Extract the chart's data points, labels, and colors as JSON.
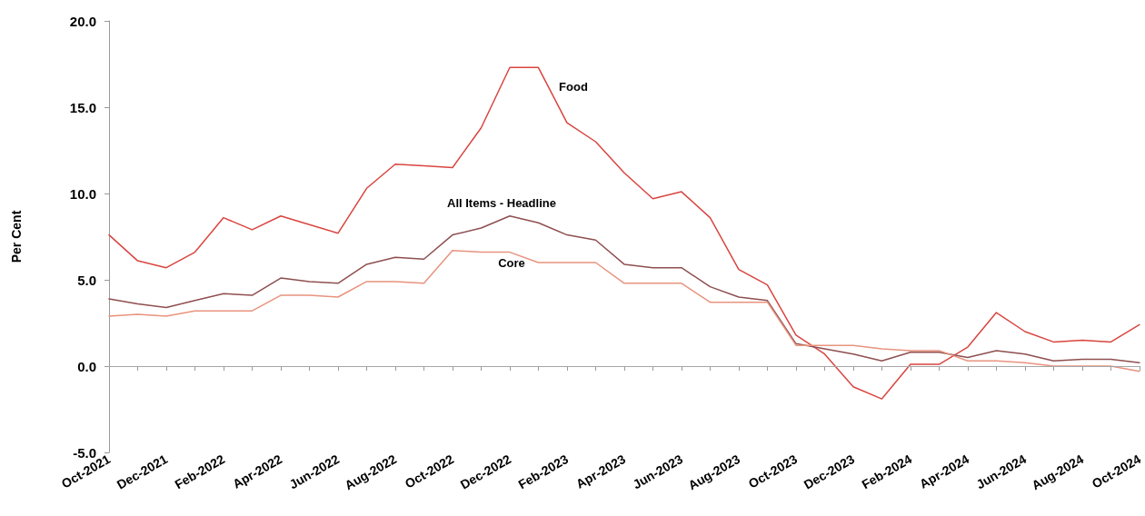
{
  "chart_data": {
    "type": "line",
    "ylabel": "Per Cent",
    "categories": [
      "Oct-2021",
      null,
      "Dec-2021",
      null,
      "Feb-2022",
      null,
      "Apr-2022",
      null,
      "Jun-2022",
      null,
      "Aug-2022",
      null,
      "Oct-2022",
      null,
      "Dec-2022",
      null,
      "Feb-2023",
      null,
      "Apr-2023",
      null,
      "Jun-2023",
      null,
      "Aug-2023",
      null,
      "Oct-2023",
      null,
      "Dec-2023",
      null,
      "Feb-2024",
      null,
      "Apr-2024",
      null,
      "Jun-2024",
      null,
      "Aug-2024",
      null,
      "Oct-2024"
    ],
    "series": [
      {
        "name": "Food",
        "color": "#d9453f",
        "values": [
          7.6,
          6.1,
          5.7,
          6.6,
          8.6,
          7.9,
          8.7,
          8.2,
          7.7,
          10.3,
          11.7,
          11.6,
          11.5,
          13.8,
          17.3,
          17.3,
          14.1,
          13.0,
          11.2,
          9.7,
          10.1,
          8.6,
          5.6,
          4.7,
          1.8,
          0.7,
          -1.2,
          -1.9,
          0.1,
          0.1,
          1.1,
          3.1,
          2.0,
          1.4,
          1.5,
          1.4,
          2.4
        ]
      },
      {
        "name": "All Items - Headline",
        "color": "#8f4f4f",
        "values": [
          3.9,
          3.6,
          3.4,
          3.8,
          4.2,
          4.1,
          5.1,
          4.9,
          4.8,
          5.9,
          6.3,
          6.2,
          7.6,
          8.0,
          8.7,
          8.3,
          7.6,
          7.3,
          5.9,
          5.7,
          5.7,
          4.6,
          4.0,
          3.8,
          1.3,
          1.0,
          0.7,
          0.3,
          0.8,
          0.8,
          0.5,
          0.9,
          0.7,
          0.3,
          0.4,
          0.4,
          0.2
        ]
      },
      {
        "name": "Core",
        "color": "#e8937e",
        "values": [
          2.9,
          3.0,
          2.9,
          3.2,
          3.2,
          3.2,
          4.1,
          4.1,
          4.0,
          4.9,
          4.9,
          4.8,
          6.7,
          6.6,
          6.6,
          6.0,
          6.0,
          6.0,
          4.8,
          4.8,
          4.8,
          3.7,
          3.7,
          3.7,
          1.2,
          1.2,
          1.2,
          1.0,
          0.9,
          0.9,
          0.3,
          0.3,
          0.2,
          0.0,
          0.0,
          0.0,
          -0.3
        ]
      }
    ],
    "ylim": [
      -5,
      20
    ],
    "yticks": [
      {
        "value": -5,
        "label": "-5.0"
      },
      {
        "value": 0,
        "label": "0.0"
      },
      {
        "value": 5,
        "label": "5.0"
      },
      {
        "value": 10,
        "label": "10.0"
      },
      {
        "value": 15,
        "label": "15.0"
      },
      {
        "value": 20,
        "label": "20.0"
      }
    ],
    "ref_lines": [
      {
        "axis": "y",
        "value": 0,
        "color": "#a6a6a6"
      }
    ],
    "grid": false,
    "legend": false,
    "marker": "none",
    "line_style": "solid"
  }
}
